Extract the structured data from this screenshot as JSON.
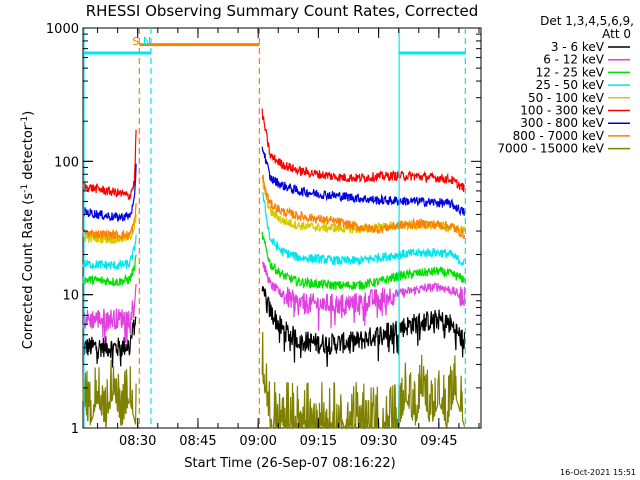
{
  "chart_data": {
    "type": "line",
    "title": "RHESSI Observing Summary Count Rates, Corrected",
    "xlabel": "Start Time (26-Sep-07 08:16:22)",
    "ylabel_main": "Corrected Count Rate (s",
    "ylabel_sup1": "-1",
    "ylabel_mid": " detector",
    "ylabel_sup2": "-1",
    "ylabel_end": ")",
    "yscale": "log",
    "ylim": [
      1,
      1000
    ],
    "yticks": [
      {
        "value": 1,
        "label": "1"
      },
      {
        "value": 10,
        "label": "10"
      },
      {
        "value": 100,
        "label": "100"
      },
      {
        "value": 1000,
        "label": "1000"
      }
    ],
    "xlim_minutes": [
      16.37,
      115.5
    ],
    "xticks": [
      {
        "minute": 30,
        "label": "08:30"
      },
      {
        "minute": 45,
        "label": "08:45"
      },
      {
        "minute": 60,
        "label": "09:00"
      },
      {
        "minute": 75,
        "label": "09:15"
      },
      {
        "minute": 90,
        "label": "09:30"
      },
      {
        "minute": 105,
        "label": "09:45"
      }
    ],
    "legend_header": [
      "Det 1,3,4,5,6,9,",
      "Att 0"
    ],
    "legend_placement": "right",
    "timestamp": "16-Oct-2021 15:51",
    "annotations": [
      {
        "text": "S",
        "minute": 29.5,
        "color": "#ff7f00"
      },
      {
        "text": "N",
        "minute": 32.3,
        "color": "#00e5ee"
      }
    ],
    "segments": [
      {
        "start": 16.37,
        "end": 29.7
      },
      {
        "start": 61.0,
        "end": 111.5
      }
    ],
    "vlines": [
      {
        "minute": 16.6,
        "color": "#00e5ee",
        "dash": false
      },
      {
        "minute": 30.4,
        "color": "#ff7f00",
        "dash": true
      },
      {
        "minute": 33.3,
        "color": "#00e5ee",
        "dash": true
      },
      {
        "minute": 60.3,
        "color": "#ff7f00",
        "dash": true
      },
      {
        "minute": 95.1,
        "color": "#00e5ee",
        "dash": false
      },
      {
        "minute": 111.6,
        "color": "#00e5ee",
        "dash": true
      }
    ],
    "hbars": [
      {
        "start": 16.6,
        "end": 33.3,
        "value": 650,
        "color": "#00e5ee"
      },
      {
        "start": 30.4,
        "end": 60.3,
        "value": 750,
        "color": "#ff7f00"
      },
      {
        "start": 95.1,
        "end": 111.6,
        "value": 650,
        "color": "#00e5ee"
      }
    ],
    "series": [
      {
        "name": "3 - 6 keV",
        "color": "#000000",
        "points": [
          [
            16.4,
            4.0
          ],
          [
            20,
            4.1
          ],
          [
            25,
            4.0
          ],
          [
            28,
            4.2
          ],
          [
            29.2,
            6.0
          ],
          [
            29.7,
            8.0
          ],
          [
            61,
            11
          ],
          [
            63,
            7.5
          ],
          [
            66,
            5.5
          ],
          [
            70,
            4.6
          ],
          [
            75,
            4.3
          ],
          [
            80,
            4.3
          ],
          [
            85,
            4.5
          ],
          [
            90,
            5.0
          ],
          [
            95,
            5.6
          ],
          [
            100,
            6.2
          ],
          [
            105,
            6.5
          ],
          [
            108,
            6.0
          ],
          [
            111.5,
            4.4
          ]
        ]
      },
      {
        "name": "6 - 12 keV",
        "color": "#e040e0",
        "points": [
          [
            16.4,
            6.5
          ],
          [
            20,
            6.6
          ],
          [
            25,
            6.6
          ],
          [
            28,
            6.8
          ],
          [
            29.2,
            9
          ],
          [
            29.7,
            13
          ],
          [
            61,
            18
          ],
          [
            63,
            12
          ],
          [
            66,
            10
          ],
          [
            70,
            8.6
          ],
          [
            75,
            8.5
          ],
          [
            80,
            8.5
          ],
          [
            85,
            8.7
          ],
          [
            90,
            9.4
          ],
          [
            95,
            10.2
          ],
          [
            100,
            11
          ],
          [
            105,
            11.5
          ],
          [
            108,
            10.8
          ],
          [
            111.5,
            9.5
          ]
        ]
      },
      {
        "name": "12 - 25 keV",
        "color": "#00e000",
        "points": [
          [
            16.4,
            13
          ],
          [
            20,
            12.8
          ],
          [
            25,
            12.5
          ],
          [
            28,
            13
          ],
          [
            29.2,
            16
          ],
          [
            29.7,
            20
          ],
          [
            61,
            28
          ],
          [
            63,
            17
          ],
          [
            66,
            14
          ],
          [
            70,
            12.5
          ],
          [
            75,
            12
          ],
          [
            80,
            11.7
          ],
          [
            85,
            11.8
          ],
          [
            90,
            12.5
          ],
          [
            95,
            13.8
          ],
          [
            100,
            14.5
          ],
          [
            105,
            15
          ],
          [
            108,
            14.3
          ],
          [
            111.5,
            13
          ]
        ]
      },
      {
        "name": "25 - 50 keV",
        "color": "#00e5ee",
        "points": [
          [
            16.4,
            17
          ],
          [
            20,
            16.8
          ],
          [
            25,
            16.5
          ],
          [
            28,
            17
          ],
          [
            29.2,
            22
          ],
          [
            29.7,
            30
          ],
          [
            61,
            60
          ],
          [
            63,
            26
          ],
          [
            66,
            21
          ],
          [
            70,
            19
          ],
          [
            75,
            18.5
          ],
          [
            80,
            18
          ],
          [
            85,
            18
          ],
          [
            90,
            19
          ],
          [
            95,
            20
          ],
          [
            100,
            20.5
          ],
          [
            105,
            20.8
          ],
          [
            108,
            20
          ],
          [
            111.5,
            17
          ]
        ]
      },
      {
        "name": "50 - 100 keV",
        "color": "#d8c800",
        "points": [
          [
            16.4,
            27
          ],
          [
            20,
            26.5
          ],
          [
            25,
            26
          ],
          [
            28,
            27
          ],
          [
            29.2,
            32
          ],
          [
            29.7,
            40
          ],
          [
            61,
            70
          ],
          [
            63,
            42
          ],
          [
            66,
            36
          ],
          [
            70,
            33
          ],
          [
            75,
            32
          ],
          [
            80,
            31.5
          ],
          [
            85,
            31
          ],
          [
            90,
            32
          ],
          [
            95,
            33
          ],
          [
            100,
            33.5
          ],
          [
            105,
            33
          ],
          [
            108,
            32
          ],
          [
            111.5,
            30
          ]
        ]
      },
      {
        "name": "100 - 300 keV",
        "color": "#ff0000",
        "points": [
          [
            16.4,
            65
          ],
          [
            20,
            62
          ],
          [
            25,
            58
          ],
          [
            28,
            55
          ],
          [
            29.2,
            70
          ],
          [
            29.7,
            220
          ],
          [
            61,
            230
          ],
          [
            62,
            160
          ],
          [
            63,
            110
          ],
          [
            66,
            95
          ],
          [
            70,
            85
          ],
          [
            75,
            80
          ],
          [
            80,
            76
          ],
          [
            85,
            75
          ],
          [
            90,
            77
          ],
          [
            95,
            78
          ],
          [
            100,
            77
          ],
          [
            105,
            75
          ],
          [
            108,
            73
          ],
          [
            111.5,
            62
          ]
        ]
      },
      {
        "name": "300 - 800 keV",
        "color": "#0000e0",
        "points": [
          [
            16.4,
            42
          ],
          [
            20,
            40
          ],
          [
            25,
            38
          ],
          [
            28,
            39
          ],
          [
            29.2,
            50
          ],
          [
            29.7,
            110
          ],
          [
            61,
            130
          ],
          [
            62,
            100
          ],
          [
            63,
            75
          ],
          [
            66,
            66
          ],
          [
            70,
            60
          ],
          [
            75,
            57
          ],
          [
            80,
            55
          ],
          [
            85,
            53
          ],
          [
            90,
            51
          ],
          [
            95,
            50.5
          ],
          [
            100,
            50
          ],
          [
            105,
            49
          ],
          [
            108,
            48
          ],
          [
            111.5,
            41
          ]
        ]
      },
      {
        "name": "800 - 7000 keV",
        "color": "#ff7f00",
        "points": [
          [
            16.4,
            29
          ],
          [
            20,
            28.5
          ],
          [
            25,
            28
          ],
          [
            28,
            28
          ],
          [
            29.2,
            35
          ],
          [
            29.7,
            50
          ],
          [
            61,
            80
          ],
          [
            62,
            58
          ],
          [
            63,
            48
          ],
          [
            66,
            42
          ],
          [
            70,
            39
          ],
          [
            75,
            37
          ],
          [
            80,
            35
          ],
          [
            85,
            32
          ],
          [
            90,
            31
          ],
          [
            95,
            33
          ],
          [
            100,
            34
          ],
          [
            105,
            33.5
          ],
          [
            108,
            32.5
          ],
          [
            111.5,
            28
          ]
        ]
      },
      {
        "name": "7000 - 15000 keV",
        "color": "#808000",
        "points": [
          [
            16.4,
            1.6
          ],
          [
            18,
            1.0
          ],
          [
            20,
            1.6
          ],
          [
            22,
            1.0
          ],
          [
            24,
            1.8
          ],
          [
            26,
            1.0
          ],
          [
            28,
            1.6
          ],
          [
            29.7,
            1.0
          ],
          [
            61,
            2.5
          ],
          [
            62,
            1.6
          ],
          [
            63,
            1.0
          ],
          [
            95,
            1.0
          ],
          [
            97,
            1.6
          ],
          [
            99,
            1.0
          ],
          [
            101,
            1.8
          ],
          [
            103,
            1.0
          ],
          [
            105,
            1.6
          ],
          [
            107,
            1.0
          ],
          [
            109,
            1.8
          ],
          [
            111.5,
            1.0
          ]
        ]
      }
    ]
  }
}
